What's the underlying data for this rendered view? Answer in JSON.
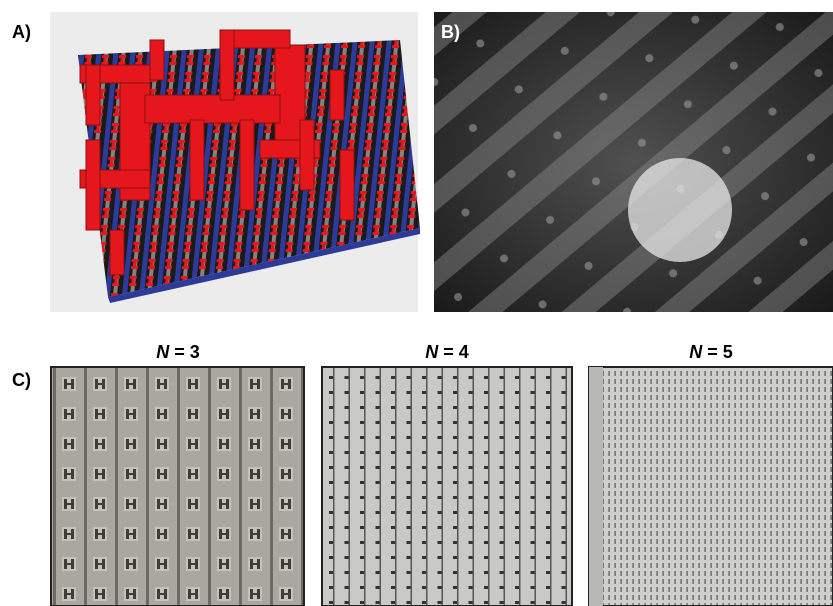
{
  "panels": {
    "a": {
      "label": "A)"
    },
    "b": {
      "label": "B)"
    },
    "c": {
      "label": "C)",
      "images": [
        {
          "var": "N",
          "rest": "= 3"
        },
        {
          "var": "N",
          "rest": "= 4"
        },
        {
          "var": "N",
          "rest": "= 5"
        }
      ]
    }
  }
}
